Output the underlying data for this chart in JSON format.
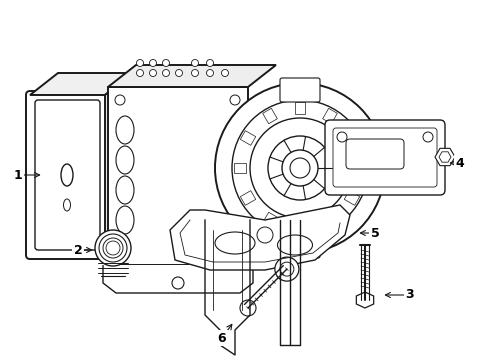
{
  "background_color": "#ffffff",
  "line_color": "#1a1a1a",
  "label_color": "#000000",
  "figsize": [
    4.9,
    3.6
  ],
  "dpi": 100
}
